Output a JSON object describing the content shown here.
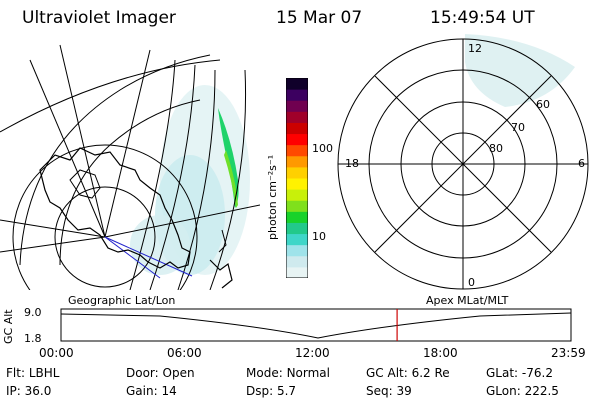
{
  "header": {
    "instrument": "Ultraviolet Imager",
    "date": "15 Mar 07",
    "time": "15:49:54 UT"
  },
  "colorbar": {
    "unit": "photon cm⁻²s⁻¹",
    "tick_100": "100",
    "tick_10": "10",
    "colors": [
      "#e8f4f4",
      "#cfeaee",
      "#9fe3ea",
      "#3fd6c8",
      "#22c98a",
      "#18d22a",
      "#7fe01c",
      "#c8f00a",
      "#fff200",
      "#ffd000",
      "#ff9900",
      "#ff4a00",
      "#ff0000",
      "#cc0000",
      "#a0002a",
      "#700050",
      "#3c0060",
      "#10002a"
    ]
  },
  "map": {
    "left_label": "Geographic Lat/Lon",
    "right_label": "Apex MLat/MLT"
  },
  "polar": {
    "top_label": "12",
    "bottom_label": "0",
    "left_label": "18",
    "right_label": "6",
    "ring_labels": [
      "60",
      "70",
      "80"
    ]
  },
  "timeline": {
    "ylabel": "GC Alt",
    "ymax_label": "9.0",
    "ymin_label": "1.8",
    "ticks": [
      "00:00",
      "06:00",
      "12:00",
      "18:00",
      "23:59"
    ],
    "current_time_fraction": 0.659
  },
  "info": {
    "row1": [
      {
        "label": "Flt:",
        "value": "LBHL"
      },
      {
        "label": "Door:",
        "value": "Open"
      },
      {
        "label": "Mode:",
        "value": "Normal"
      },
      {
        "label": "GC Alt:",
        "value": "6.2 Re"
      },
      {
        "label": "GLat:",
        "value": "-76.2"
      }
    ],
    "row2": [
      {
        "label": "IP:",
        "value": "36.0"
      },
      {
        "label": "Gain:",
        "value": "14"
      },
      {
        "label": "Dsp:",
        "value": "5.7"
      },
      {
        "label": "Seq:",
        "value": "39"
      },
      {
        "label": "GLon:",
        "value": "222.5"
      }
    ]
  }
}
